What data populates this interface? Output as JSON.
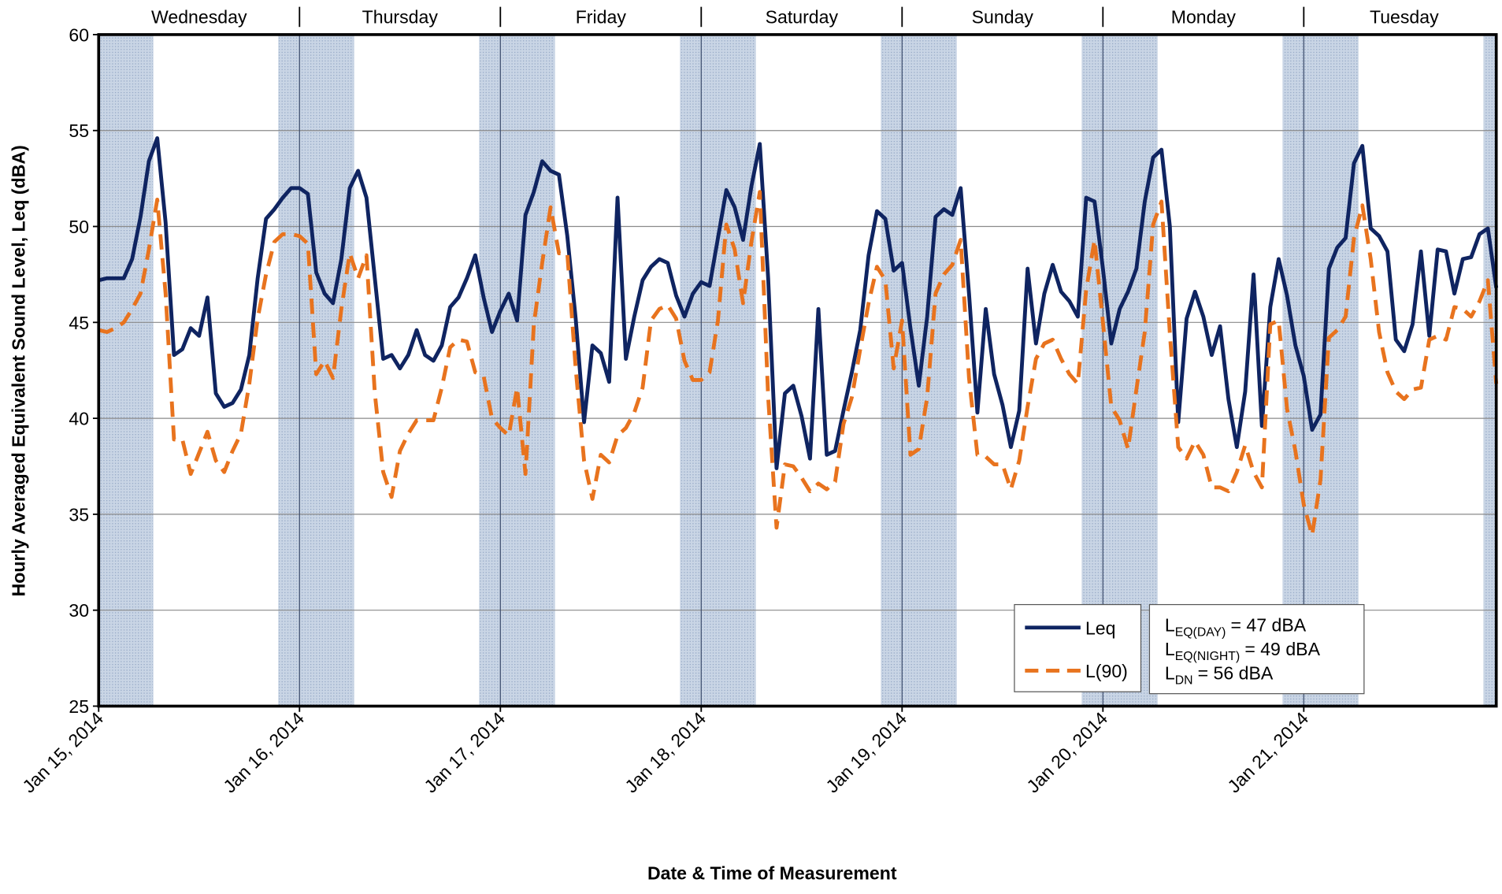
{
  "chart_data": {
    "type": "line",
    "x_title": "Date & Time of Measurement",
    "y_title": "Hourly Averaged Equivalent Sound Level, Leq (dBA)",
    "x": [
      0,
      1,
      2,
      3,
      4,
      5,
      6,
      7,
      8,
      9,
      10,
      11,
      12,
      13,
      14,
      15,
      16,
      17,
      18,
      19,
      20,
      21,
      22,
      23,
      24,
      25,
      26,
      27,
      28,
      29,
      30,
      31,
      32,
      33,
      34,
      35,
      36,
      37,
      38,
      39,
      40,
      41,
      42,
      43,
      44,
      45,
      46,
      47,
      48,
      49,
      50,
      51,
      52,
      53,
      54,
      55,
      56,
      57,
      58,
      59,
      60,
      61,
      62,
      63,
      64,
      65,
      66,
      67,
      68,
      69,
      70,
      71,
      72,
      73,
      74,
      75,
      76,
      77,
      78,
      79,
      80,
      81,
      82,
      83,
      84,
      85,
      86,
      87,
      88,
      89,
      90,
      91,
      92,
      93,
      94,
      95,
      96,
      97,
      98,
      99,
      100,
      101,
      102,
      103,
      104,
      105,
      106,
      107,
      108,
      109,
      110,
      111,
      112,
      113,
      114,
      115,
      116,
      117,
      118,
      119,
      120,
      121,
      122,
      123,
      124,
      125,
      126,
      127,
      128,
      129,
      130,
      131,
      132,
      133,
      134,
      135,
      136,
      137,
      138,
      139,
      140,
      141,
      142,
      143,
      144,
      145,
      146,
      147,
      148,
      149,
      150,
      151,
      152,
      153,
      154,
      155,
      156,
      157,
      158,
      159,
      160,
      161,
      162,
      163,
      164,
      165,
      166,
      167
    ],
    "series": [
      {
        "name": "Leq",
        "color": "#0f2461",
        "dash": false,
        "values": [
          47.2,
          47.3,
          47.3,
          47.3,
          48.3,
          50.5,
          53.4,
          54.6,
          50.2,
          43.3,
          43.6,
          44.7,
          44.3,
          46.3,
          41.3,
          40.6,
          40.8,
          41.5,
          43.3,
          47.3,
          50.4,
          50.9,
          51.5,
          52.0,
          52.0,
          51.7,
          47.6,
          46.5,
          46.0,
          48.3,
          52.0,
          52.9,
          51.5,
          47.3,
          43.1,
          43.3,
          42.6,
          43.3,
          44.6,
          43.3,
          43.0,
          43.8,
          45.8,
          46.3,
          47.3,
          48.5,
          46.3,
          44.5,
          45.6,
          46.5,
          45.1,
          50.6,
          51.8,
          53.4,
          52.9,
          52.7,
          49.5,
          45.2,
          39.8,
          43.8,
          43.4,
          41.9,
          51.5,
          43.1,
          45.3,
          47.2,
          47.9,
          48.3,
          48.1,
          46.4,
          45.3,
          46.5,
          47.1,
          46.9,
          49.4,
          51.9,
          51.0,
          49.3,
          52.1,
          54.3,
          47.3,
          37.4,
          41.3,
          41.7,
          40.1,
          37.9,
          45.7,
          38.1,
          38.3,
          40.4,
          42.4,
          44.6,
          48.5,
          50.8,
          50.4,
          47.7,
          48.1,
          44.7,
          41.7,
          45.3,
          50.5,
          50.9,
          50.6,
          52.0,
          46.5,
          40.3,
          45.7,
          42.3,
          40.7,
          38.5,
          40.4,
          47.8,
          43.9,
          46.5,
          48.0,
          46.6,
          46.1,
          45.3,
          51.5,
          51.3,
          47.8,
          43.9,
          45.7,
          46.6,
          47.8,
          51.3,
          53.6,
          54.0,
          50.0,
          39.8,
          45.2,
          46.6,
          45.3,
          43.3,
          44.8,
          41.0,
          38.5,
          41.4,
          47.5,
          39.6,
          45.8,
          48.3,
          46.4,
          43.8,
          42.2,
          39.4,
          40.2,
          47.8,
          48.9,
          49.4,
          53.3,
          54.2,
          49.9,
          49.5,
          48.7,
          44.1,
          43.5,
          44.9,
          48.7,
          44.3,
          48.8,
          48.7,
          46.5,
          48.3,
          48.4,
          49.6,
          49.9,
          46.8
        ]
      },
      {
        "name": "L(90)",
        "color": "#e8731e",
        "dash": true,
        "values": [
          44.6,
          44.5,
          44.7,
          45.0,
          45.7,
          46.5,
          48.8,
          51.4,
          46.5,
          38.9,
          38.9,
          37.1,
          38.2,
          39.3,
          37.8,
          37.2,
          38.3,
          39.2,
          41.8,
          45.2,
          47.5,
          49.2,
          49.6,
          49.6,
          49.5,
          49.1,
          42.3,
          43.0,
          42.1,
          45.7,
          48.6,
          47.3,
          48.5,
          41.3,
          37.2,
          35.9,
          38.3,
          39.2,
          39.9,
          39.9,
          39.9,
          41.6,
          43.7,
          44.1,
          44.0,
          42.4,
          42.2,
          40.0,
          39.5,
          39.1,
          41.6,
          37.1,
          44.9,
          48.1,
          51.0,
          48.6,
          48.6,
          42.6,
          37.8,
          35.8,
          38.1,
          37.7,
          39.1,
          39.5,
          40.3,
          41.6,
          45.1,
          45.7,
          45.9,
          45.2,
          43.0,
          42.0,
          42.0,
          42.4,
          45.1,
          50.1,
          48.8,
          46.0,
          49.2,
          51.8,
          41.1,
          34.3,
          37.6,
          37.5,
          36.9,
          36.2,
          36.6,
          36.3,
          36.7,
          39.7,
          41.1,
          43.6,
          46.0,
          47.9,
          47.2,
          42.6,
          45.1,
          38.1,
          38.4,
          41.1,
          46.5,
          47.5,
          48.0,
          49.3,
          42.1,
          38.1,
          38.0,
          37.6,
          37.6,
          36.3,
          37.8,
          40.6,
          43.1,
          43.9,
          44.1,
          43.1,
          42.3,
          41.8,
          46.7,
          49.3,
          45.0,
          40.6,
          39.9,
          38.4,
          41.5,
          44.5,
          50.1,
          51.3,
          44.4,
          38.5,
          37.9,
          38.8,
          38.1,
          36.4,
          36.4,
          36.2,
          37.2,
          38.6,
          37.2,
          36.4,
          44.9,
          45.1,
          40.5,
          38.3,
          35.5,
          33.9,
          36.8,
          44.2,
          44.6,
          45.3,
          49.4,
          51.1,
          48.3,
          44.5,
          42.4,
          41.4,
          41.0,
          41.5,
          41.6,
          44.1,
          44.3,
          44.1,
          45.8,
          45.7,
          45.3,
          46.1,
          47.2,
          41.8
        ]
      }
    ],
    "xlim": [
      0,
      167
    ],
    "xticks": [
      {
        "value": 0,
        "label": "Jan 15, 2014"
      },
      {
        "value": 24,
        "label": "Jan 16, 2014"
      },
      {
        "value": 48,
        "label": "Jan 17, 2014"
      },
      {
        "value": 72,
        "label": "Jan 18, 2014"
      },
      {
        "value": 96,
        "label": "Jan 19, 2014"
      },
      {
        "value": 120,
        "label": "Jan 20, 2014"
      },
      {
        "value": 144,
        "label": "Jan 21, 2014"
      }
    ],
    "ylim": [
      25,
      60
    ],
    "yticks": [
      25,
      30,
      35,
      40,
      45,
      50,
      55,
      60
    ],
    "grid": true,
    "day_labels": [
      "Wednesday",
      "Thursday",
      "Friday",
      "Saturday",
      "Sunday",
      "Monday",
      "Tuesday"
    ],
    "shading": {
      "color": "#bfcde0",
      "ranges": [
        [
          0,
          6.5
        ],
        [
          21.5,
          30.5
        ],
        [
          45.5,
          54.5
        ],
        [
          69.5,
          78.5
        ],
        [
          93.5,
          102.5
        ],
        [
          117.5,
          126.5
        ],
        [
          141.5,
          150.5
        ],
        [
          165.5,
          167
        ]
      ]
    },
    "legend": "lower right",
    "annotations": [
      {
        "text": "L",
        "subscript": "EQ(DAY)",
        "suffix": "= 47 dBA"
      },
      {
        "text": "L",
        "subscript": "EQ(NIGHT)",
        "suffix": "= 49 dBA"
      },
      {
        "text": "L",
        "subscript": "DN",
        "suffix": "= 56 dBA"
      }
    ]
  }
}
